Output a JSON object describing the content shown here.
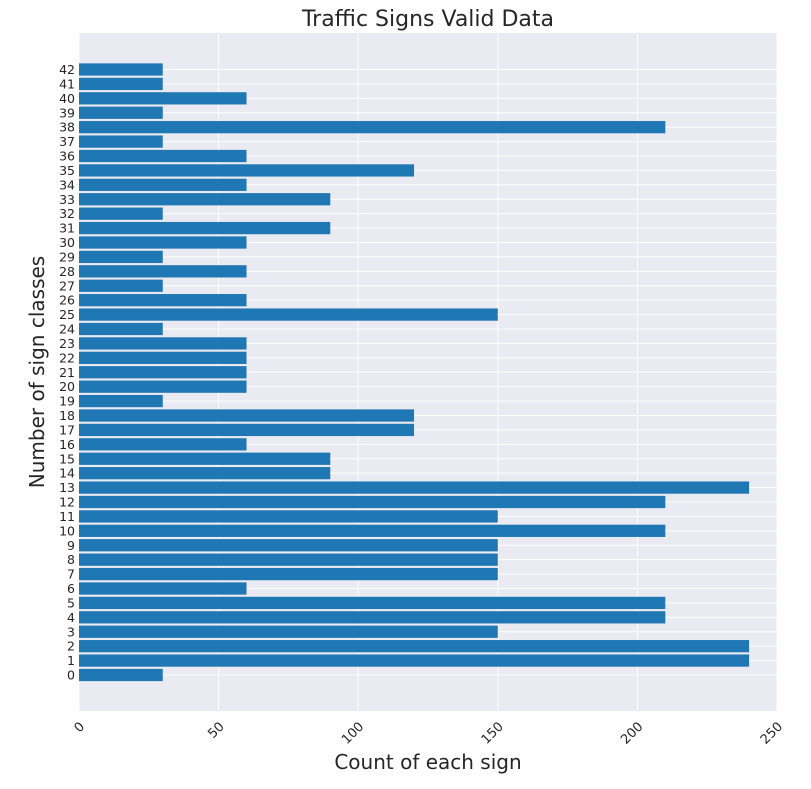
{
  "chart_data": {
    "type": "bar",
    "orientation": "horizontal",
    "title": "Traffic Signs Valid Data",
    "xlabel": "Count of each sign",
    "ylabel": "Number of sign classes",
    "xlim": [
      0,
      250
    ],
    "x_ticks": [
      0,
      50,
      100,
      150,
      200,
      250
    ],
    "categories": [
      "0",
      "1",
      "2",
      "3",
      "4",
      "5",
      "6",
      "7",
      "8",
      "9",
      "10",
      "11",
      "12",
      "13",
      "14",
      "15",
      "16",
      "17",
      "18",
      "19",
      "20",
      "21",
      "22",
      "23",
      "24",
      "25",
      "26",
      "27",
      "28",
      "29",
      "30",
      "31",
      "32",
      "33",
      "34",
      "35",
      "36",
      "37",
      "38",
      "39",
      "40",
      "41",
      "42"
    ],
    "values": [
      30,
      240,
      240,
      150,
      210,
      210,
      60,
      150,
      150,
      150,
      210,
      150,
      210,
      240,
      90,
      90,
      60,
      120,
      120,
      30,
      60,
      60,
      60,
      60,
      30,
      150,
      60,
      30,
      60,
      30,
      60,
      90,
      30,
      90,
      60,
      120,
      60,
      30,
      210,
      30,
      60,
      30,
      30
    ],
    "grid": true,
    "bar_color": "#1f77b4",
    "background_color": "#eaeaf2",
    "grid_color": "#ffffff"
  }
}
